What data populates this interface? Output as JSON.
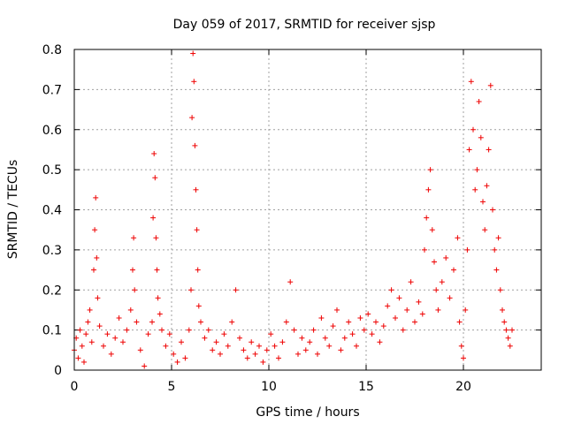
{
  "chart_data": {
    "type": "scatter",
    "title": "Day 059 of 2017, SRMTID for receiver sjsp",
    "xlabel": "GPS time / hours",
    "ylabel": "SRMTID / TECUs",
    "xlim": [
      0,
      24
    ],
    "ylim": [
      0,
      0.8
    ],
    "xticks": [
      0,
      5,
      10,
      15,
      20
    ],
    "xtick_labels": [
      "0",
      "5",
      "10",
      "15",
      "20"
    ],
    "yticks": [
      0,
      0.1,
      0.2,
      0.3,
      0.4,
      0.5,
      0.6,
      0.7,
      0.8
    ],
    "ytick_labels": [
      "0",
      "0.1",
      "0.2",
      "0.3",
      "0.4",
      "0.5",
      "0.6",
      "0.7",
      "0.8"
    ],
    "grid": true,
    "marker": "+",
    "marker_color": "#ee0000",
    "series": [
      {
        "name": "SRMTID",
        "points": [
          [
            0.0,
            0.05
          ],
          [
            0.1,
            0.08
          ],
          [
            0.2,
            0.03
          ],
          [
            0.3,
            0.1
          ],
          [
            0.4,
            0.06
          ],
          [
            0.5,
            0.02
          ],
          [
            0.6,
            0.09
          ],
          [
            0.7,
            0.12
          ],
          [
            0.8,
            0.15
          ],
          [
            0.9,
            0.07
          ],
          [
            1.0,
            0.25
          ],
          [
            1.05,
            0.35
          ],
          [
            1.1,
            0.43
          ],
          [
            1.15,
            0.28
          ],
          [
            1.2,
            0.18
          ],
          [
            1.3,
            0.11
          ],
          [
            1.5,
            0.06
          ],
          [
            1.7,
            0.09
          ],
          [
            1.9,
            0.04
          ],
          [
            2.1,
            0.08
          ],
          [
            2.3,
            0.13
          ],
          [
            2.5,
            0.07
          ],
          [
            2.7,
            0.1
          ],
          [
            2.9,
            0.15
          ],
          [
            3.0,
            0.25
          ],
          [
            3.05,
            0.33
          ],
          [
            3.1,
            0.2
          ],
          [
            3.2,
            0.12
          ],
          [
            3.4,
            0.05
          ],
          [
            3.6,
            0.01
          ],
          [
            3.8,
            0.09
          ],
          [
            4.0,
            0.12
          ],
          [
            4.05,
            0.38
          ],
          [
            4.1,
            0.54
          ],
          [
            4.15,
            0.48
          ],
          [
            4.2,
            0.33
          ],
          [
            4.25,
            0.25
          ],
          [
            4.3,
            0.18
          ],
          [
            4.4,
            0.14
          ],
          [
            4.5,
            0.1
          ],
          [
            4.7,
            0.06
          ],
          [
            4.9,
            0.09
          ],
          [
            5.1,
            0.04
          ],
          [
            5.3,
            0.02
          ],
          [
            5.5,
            0.07
          ],
          [
            5.7,
            0.03
          ],
          [
            5.9,
            0.1
          ],
          [
            6.0,
            0.2
          ],
          [
            6.05,
            0.63
          ],
          [
            6.1,
            0.79
          ],
          [
            6.15,
            0.72
          ],
          [
            6.2,
            0.56
          ],
          [
            6.25,
            0.45
          ],
          [
            6.3,
            0.35
          ],
          [
            6.35,
            0.25
          ],
          [
            6.4,
            0.16
          ],
          [
            6.5,
            0.12
          ],
          [
            6.7,
            0.08
          ],
          [
            6.9,
            0.1
          ],
          [
            7.1,
            0.05
          ],
          [
            7.3,
            0.07
          ],
          [
            7.5,
            0.04
          ],
          [
            7.7,
            0.09
          ],
          [
            7.9,
            0.06
          ],
          [
            8.1,
            0.12
          ],
          [
            8.3,
            0.2
          ],
          [
            8.5,
            0.08
          ],
          [
            8.7,
            0.05
          ],
          [
            8.9,
            0.03
          ],
          [
            9.1,
            0.07
          ],
          [
            9.3,
            0.04
          ],
          [
            9.5,
            0.06
          ],
          [
            9.7,
            0.02
          ],
          [
            9.9,
            0.05
          ],
          [
            10.1,
            0.09
          ],
          [
            10.3,
            0.06
          ],
          [
            10.5,
            0.03
          ],
          [
            10.7,
            0.07
          ],
          [
            10.9,
            0.12
          ],
          [
            11.1,
            0.22
          ],
          [
            11.3,
            0.1
          ],
          [
            11.5,
            0.04
          ],
          [
            11.7,
            0.08
          ],
          [
            11.9,
            0.05
          ],
          [
            12.1,
            0.07
          ],
          [
            12.3,
            0.1
          ],
          [
            12.5,
            0.04
          ],
          [
            12.7,
            0.13
          ],
          [
            12.9,
            0.08
          ],
          [
            13.1,
            0.06
          ],
          [
            13.3,
            0.11
          ],
          [
            13.5,
            0.15
          ],
          [
            13.7,
            0.05
          ],
          [
            13.9,
            0.08
          ],
          [
            14.1,
            0.12
          ],
          [
            14.3,
            0.09
          ],
          [
            14.5,
            0.06
          ],
          [
            14.7,
            0.13
          ],
          [
            14.9,
            0.1
          ],
          [
            15.1,
            0.14
          ],
          [
            15.3,
            0.09
          ],
          [
            15.5,
            0.12
          ],
          [
            15.7,
            0.07
          ],
          [
            15.9,
            0.11
          ],
          [
            16.1,
            0.16
          ],
          [
            16.3,
            0.2
          ],
          [
            16.5,
            0.13
          ],
          [
            16.7,
            0.18
          ],
          [
            16.9,
            0.1
          ],
          [
            17.1,
            0.15
          ],
          [
            17.3,
            0.22
          ],
          [
            17.5,
            0.12
          ],
          [
            17.7,
            0.17
          ],
          [
            17.9,
            0.14
          ],
          [
            18.0,
            0.3
          ],
          [
            18.1,
            0.38
          ],
          [
            18.2,
            0.45
          ],
          [
            18.3,
            0.5
          ],
          [
            18.4,
            0.35
          ],
          [
            18.5,
            0.27
          ],
          [
            18.6,
            0.2
          ],
          [
            18.7,
            0.15
          ],
          [
            18.9,
            0.22
          ],
          [
            19.1,
            0.28
          ],
          [
            19.3,
            0.18
          ],
          [
            19.5,
            0.25
          ],
          [
            19.7,
            0.33
          ],
          [
            19.8,
            0.12
          ],
          [
            19.9,
            0.06
          ],
          [
            20.0,
            0.03
          ],
          [
            20.1,
            0.15
          ],
          [
            20.2,
            0.3
          ],
          [
            20.3,
            0.55
          ],
          [
            20.4,
            0.72
          ],
          [
            20.5,
            0.6
          ],
          [
            20.6,
            0.45
          ],
          [
            20.7,
            0.5
          ],
          [
            20.8,
            0.67
          ],
          [
            20.9,
            0.58
          ],
          [
            21.0,
            0.42
          ],
          [
            21.1,
            0.35
          ],
          [
            21.2,
            0.46
          ],
          [
            21.3,
            0.55
          ],
          [
            21.4,
            0.71
          ],
          [
            21.5,
            0.4
          ],
          [
            21.6,
            0.3
          ],
          [
            21.7,
            0.25
          ],
          [
            21.8,
            0.33
          ],
          [
            21.9,
            0.2
          ],
          [
            22.0,
            0.15
          ],
          [
            22.1,
            0.12
          ],
          [
            22.2,
            0.1
          ],
          [
            22.3,
            0.08
          ],
          [
            22.4,
            0.06
          ],
          [
            22.5,
            0.1
          ]
        ]
      }
    ]
  }
}
